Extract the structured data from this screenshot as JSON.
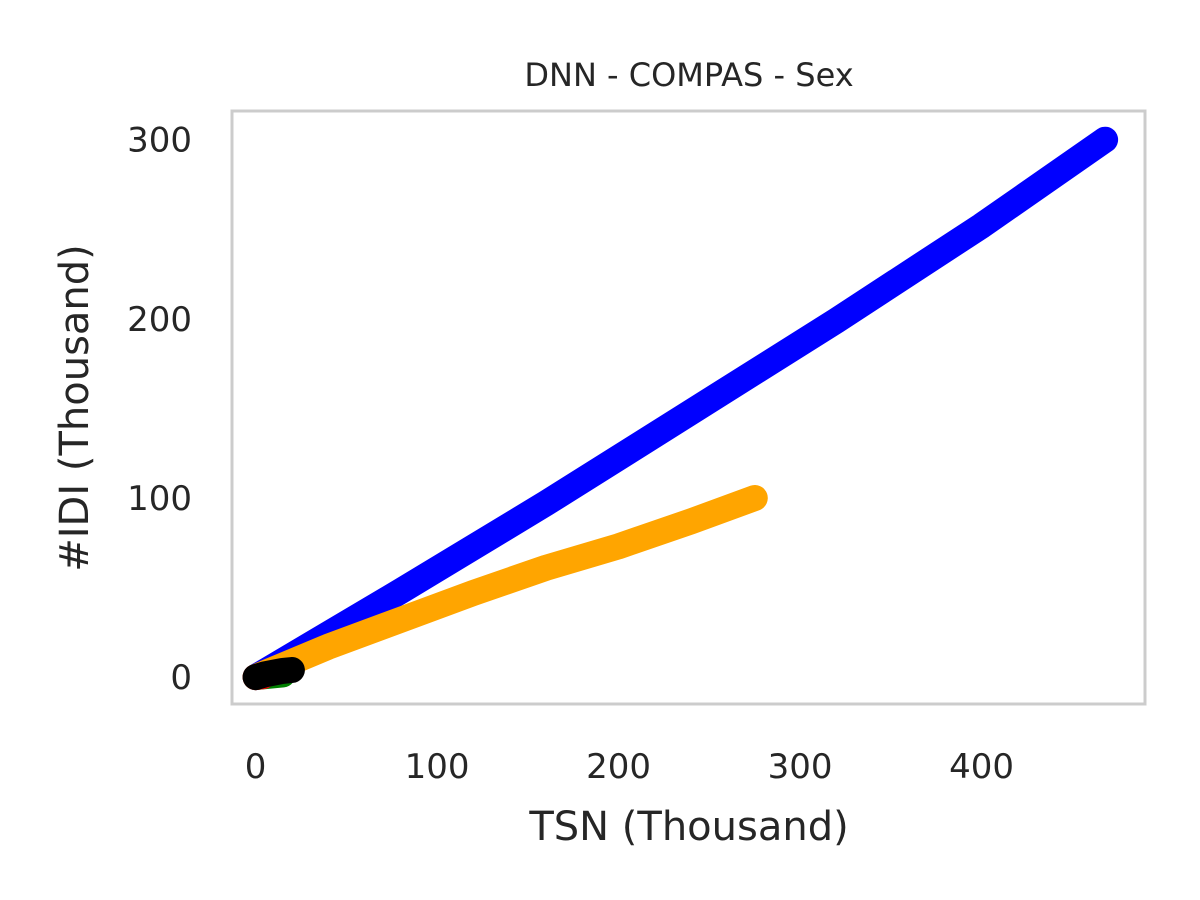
{
  "chart_data": {
    "type": "line",
    "title": "DNN - COMPAS - Sex",
    "xlabel": "TSN (Thousand)",
    "ylabel": "#IDI (Thousand)",
    "xlim": [
      -13,
      490
    ],
    "ylim": [
      -15,
      316
    ],
    "xticks": [
      0,
      100,
      200,
      300,
      400
    ],
    "yticks": [
      0,
      100,
      200,
      300
    ],
    "grid": false,
    "legend": "none",
    "series": [
      {
        "color": "#0000ff",
        "x": [
          0,
          80,
          160,
          240,
          320,
          400,
          468
        ],
        "y": [
          0,
          48,
          97,
          148,
          199,
          252,
          300
        ]
      },
      {
        "color": "#ffa500",
        "x": [
          0,
          40,
          80,
          120,
          160,
          200,
          240,
          275
        ],
        "y": [
          0,
          17,
          32,
          47,
          61,
          73,
          87,
          100
        ]
      },
      {
        "color": "#008000",
        "x": [
          0,
          5,
          10,
          15
        ],
        "y": [
          0,
          0.5,
          1,
          1.5
        ]
      },
      {
        "color": "#ff0000",
        "x": [
          0,
          2,
          4
        ],
        "y": [
          0,
          0.3,
          0.6
        ]
      },
      {
        "color": "#000000",
        "x": [
          0,
          5,
          10,
          15,
          20
        ],
        "y": [
          0,
          1.5,
          2.5,
          3.5,
          4
        ]
      }
    ]
  }
}
